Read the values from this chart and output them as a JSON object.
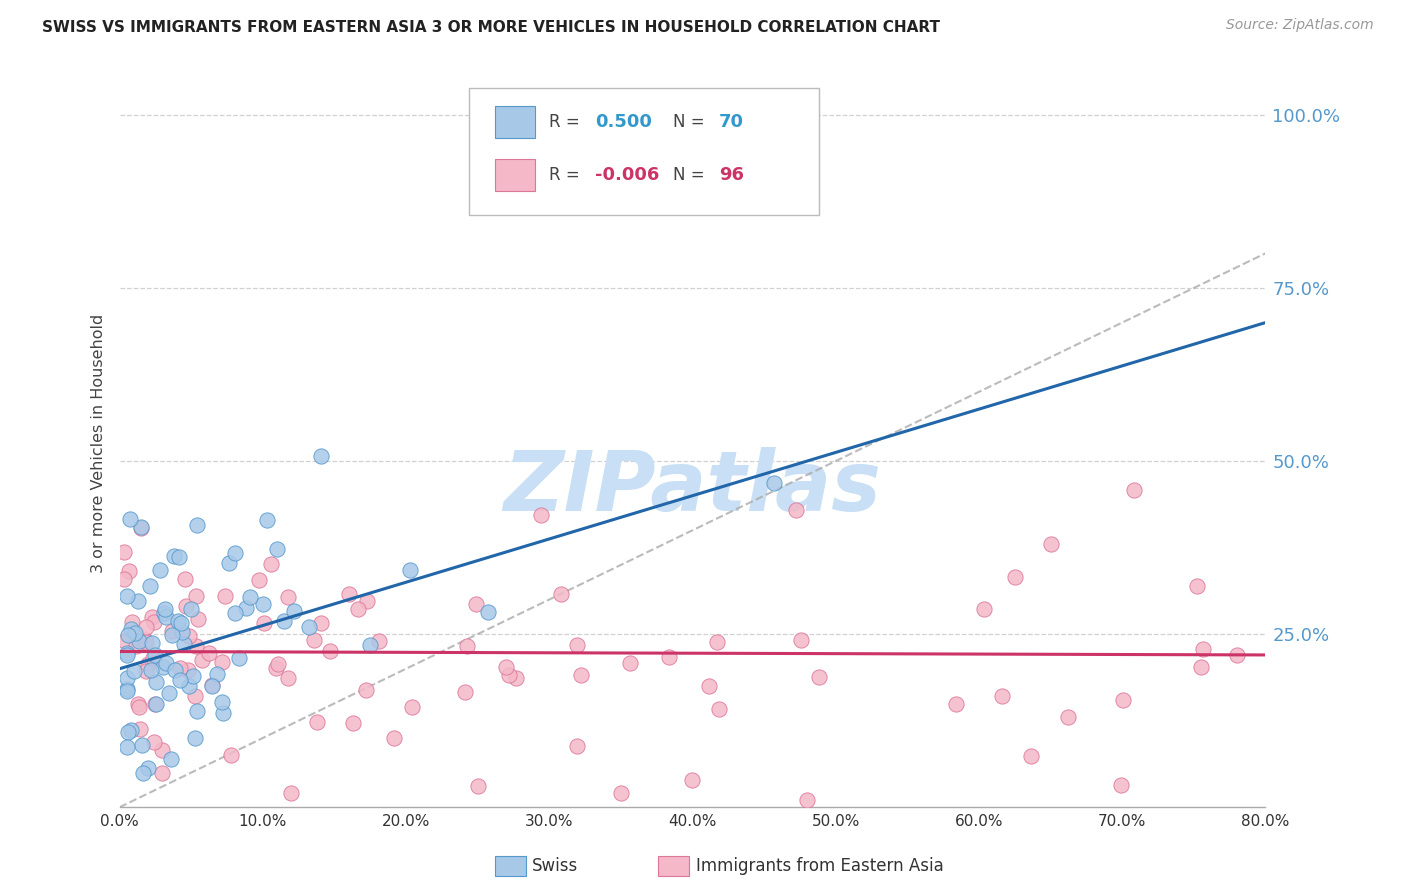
{
  "title": "SWISS VS IMMIGRANTS FROM EASTERN ASIA 3 OR MORE VEHICLES IN HOUSEHOLD CORRELATION CHART",
  "source": "Source: ZipAtlas.com",
  "ylabel": "3 or more Vehicles in Household",
  "xlim": [
    0.0,
    80.0
  ],
  "ylim": [
    0.0,
    105.0
  ],
  "yticks_right": [
    25.0,
    50.0,
    75.0,
    100.0
  ],
  "ytick_labels_right": [
    "25.0%",
    "50.0%",
    "75.0%",
    "100.0%"
  ],
  "swiss_R": "0.500",
  "swiss_N": "70",
  "imm_R": "-0.006",
  "imm_N": "96",
  "swiss_fill": "#a8c8e8",
  "swiss_edge": "#5599cc",
  "swiss_line": "#2266aa",
  "imm_fill": "#f4b8c8",
  "imm_edge": "#dd7799",
  "imm_line": "#cc3366",
  "ref_line_color": "#aaaaaa",
  "watermark": "ZIPatlas",
  "watermark_color": "#c8dff5",
  "grid_color": "#cccccc",
  "right_tick_color": "#5599cc",
  "title_color": "#222222",
  "source_color": "#999999",
  "swiss_reg_x0": 0.0,
  "swiss_reg_y0": 20.0,
  "swiss_reg_x1": 72.0,
  "swiss_reg_y1": 65.0,
  "imm_reg_x0": 0.0,
  "imm_reg_y0": 22.5,
  "imm_reg_x1": 80.0,
  "imm_reg_y1": 22.0,
  "ref_x0": 0.0,
  "ref_y0": 0.0,
  "ref_x1": 80.0,
  "ref_y1": 80.0
}
